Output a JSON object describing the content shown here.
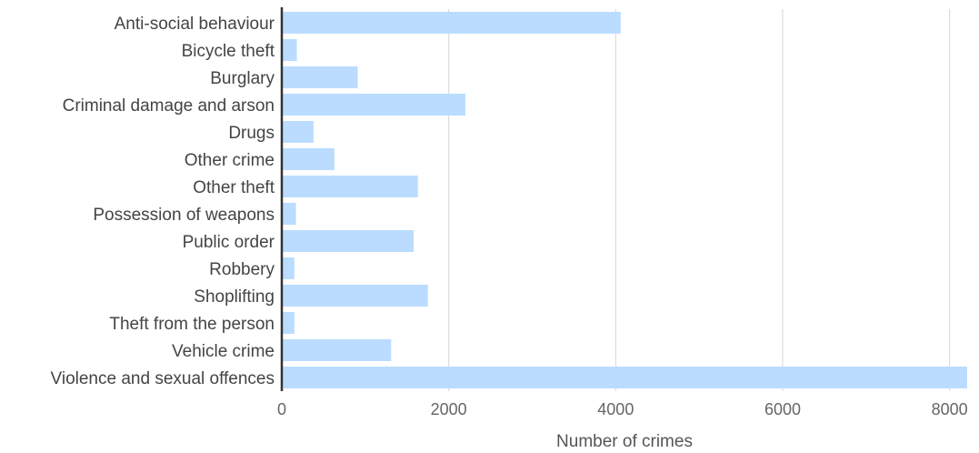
{
  "chart_data": {
    "type": "bar",
    "orientation": "horizontal",
    "categories": [
      "Anti-social behaviour",
      "Bicycle theft",
      "Burglary",
      "Criminal damage and arson",
      "Drugs",
      "Other crime",
      "Other theft",
      "Possession of weapons",
      "Public order",
      "Robbery",
      "Shoplifting",
      "Theft from the person",
      "Vehicle crime",
      "Violence and sexual offences"
    ],
    "values": [
      4060,
      180,
      910,
      2200,
      380,
      630,
      1630,
      170,
      1580,
      150,
      1750,
      150,
      1310,
      8210
    ],
    "xlabel": "Number of crimes",
    "ylabel": "",
    "xlim": [
      0,
      8200
    ],
    "xticks": [
      0,
      2000,
      4000,
      6000,
      8000
    ],
    "grid": true,
    "bar_color": "#bbdcff",
    "axis_color": "#333333",
    "grid_color": "#d6d6d6"
  }
}
